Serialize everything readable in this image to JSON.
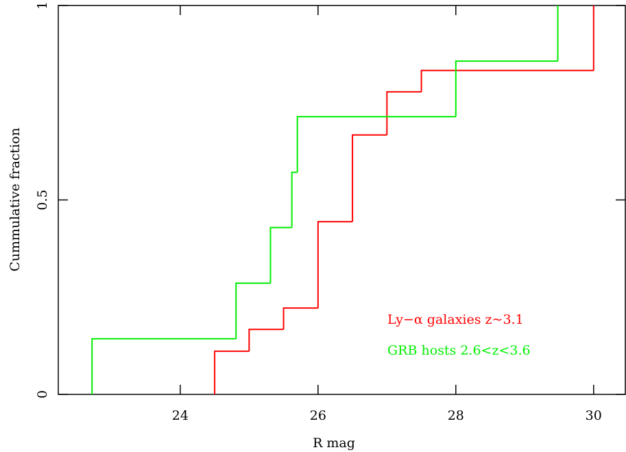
{
  "chart_data": {
    "type": "step",
    "xlabel": "R mag",
    "ylabel": "Cummulative fraction",
    "xlim": [
      22.23,
      30.46
    ],
    "ylim": [
      0,
      1
    ],
    "xticks": [
      24,
      26,
      28,
      30
    ],
    "yticks": [
      0,
      0.5,
      1
    ],
    "series": [
      {
        "name": "Ly−α galaxies z~3.1",
        "color": "#ff0000",
        "x": [
          24.5,
          25.0,
          25.5,
          26.0,
          26.5,
          27.0,
          27.5,
          30.0
        ],
        "values": [
          0.111,
          0.167,
          0.222,
          0.444,
          0.667,
          0.778,
          0.833,
          1.0
        ]
      },
      {
        "name": "GRB hosts 2.6<z<3.6",
        "color": "#00ee00",
        "x": [
          22.72,
          24.81,
          25.31,
          25.62,
          25.7,
          28.0,
          29.48
        ],
        "values": [
          0.143,
          0.286,
          0.429,
          0.571,
          0.714,
          0.857,
          1.0
        ]
      }
    ]
  }
}
